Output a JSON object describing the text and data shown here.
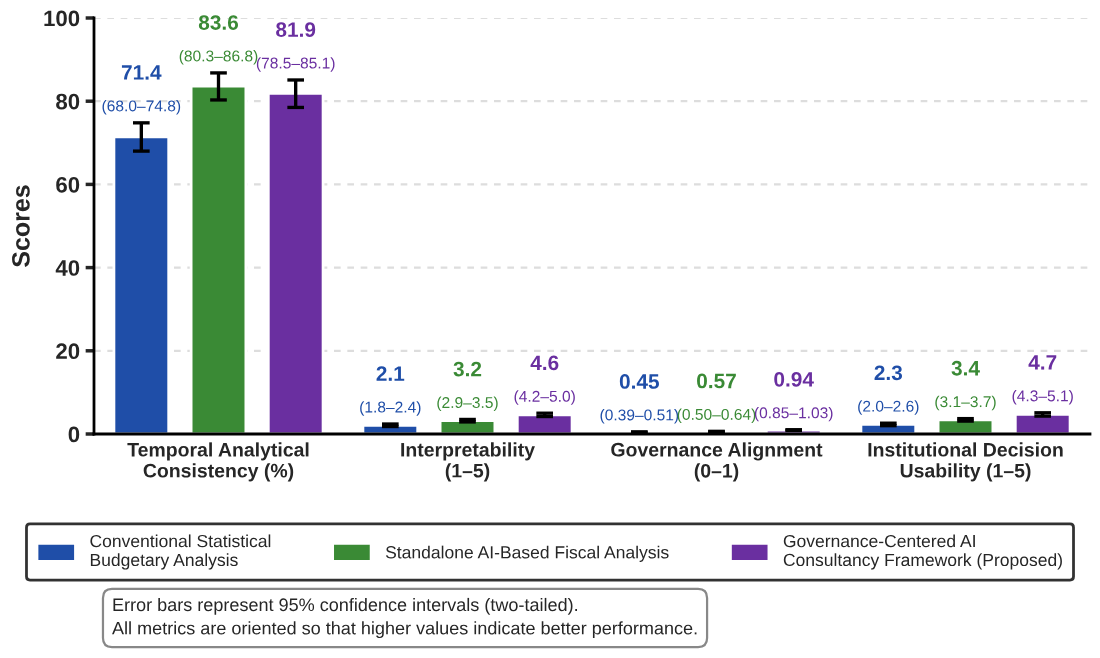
{
  "chart_data": {
    "type": "bar",
    "ylabel": "Scores",
    "categories": [
      "Temporal Analytical\nConsistency (%)",
      "Interpretability\n(1–5)",
      "Governance Alignment\n(0–1)",
      "Institutional Decision\nUsability (1–5)"
    ],
    "series": [
      {
        "name": "Conventional Statistical\nBudgetary Analysis",
        "color": "#1f4ea8",
        "values": [
          71.4,
          2.1,
          0.45,
          2.3
        ],
        "errors": [
          [
            68.0,
            74.8
          ],
          [
            1.8,
            2.4
          ],
          [
            0.39,
            0.51
          ],
          [
            2.0,
            2.6
          ]
        ],
        "value_labels": [
          "71.4\n(68.0–74.8)",
          "2.1\n(1.8–2.4)",
          "0.45\n(0.39–0.51)",
          "2.3\n(2.0–2.6)"
        ]
      },
      {
        "name": "Standalone AI-Based Fiscal Analysis",
        "color": "#3a8a35",
        "values": [
          83.6,
          3.2,
          0.57,
          3.4
        ],
        "errors": [
          [
            80.3,
            86.8
          ],
          [
            2.9,
            3.5
          ],
          [
            0.5,
            0.64
          ],
          [
            3.1,
            3.7
          ]
        ],
        "value_labels": [
          "83.6\n(80.3–86.8)",
          "3.2\n(2.9–3.5)",
          "0.57\n(0.50–0.64)",
          "3.4\n(3.1–3.7)"
        ]
      },
      {
        "name": "Governance-Centered AI\nConsultancy Framework (Proposed)",
        "color": "#6a2fa0",
        "values": [
          81.9,
          4.6,
          0.94,
          4.7
        ],
        "errors": [
          [
            78.5,
            85.1
          ],
          [
            4.2,
            5.0
          ],
          [
            0.85,
            1.03
          ],
          [
            4.3,
            5.1
          ]
        ],
        "value_labels": [
          "81.9\n(78.5–85.1)",
          "4.6\n(4.2–5.0)",
          "0.94\n(0.85–1.03)",
          "4.7\n(4.3–5.1)"
        ]
      }
    ],
    "ylim": [
      0,
      100
    ],
    "yticks": [
      0,
      20,
      40,
      60,
      80,
      100
    ],
    "grid": "y",
    "legend": "bottom",
    "annotations": [
      "Error bars represent 95% confidence intervals (two-tailed).",
      "All metrics are oriented so that higher values indicate better performance."
    ]
  }
}
